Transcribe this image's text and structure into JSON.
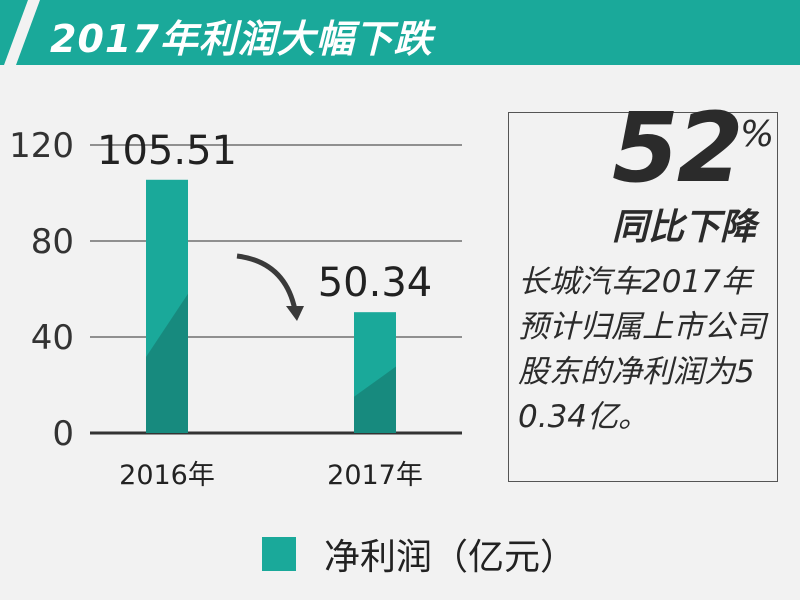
{
  "header": {
    "title": "2017年利润大幅下跌"
  },
  "chart_data": {
    "type": "bar",
    "categories": [
      "2016年",
      "2017年"
    ],
    "series": [
      {
        "name": "净利润（亿元）",
        "values": [
          105.51,
          50.34
        ]
      }
    ],
    "data_labels": [
      "105.51",
      "50.34"
    ],
    "yticks": [
      "0",
      "40",
      "80",
      "120"
    ],
    "ylim": [
      0,
      120
    ],
    "grid": true,
    "legend": "bottom",
    "colors": {
      "bar_light": "#1aa99a",
      "bar_dark": "#178a7e",
      "banner": "#1aa99a"
    }
  },
  "callout": {
    "number": "52",
    "percent": "%",
    "change_label": "同比下降",
    "description": "长城汽车2017年预计归属上市公司股东的净利润为50.34亿。"
  },
  "legend": {
    "label": "净利润（亿元）"
  }
}
